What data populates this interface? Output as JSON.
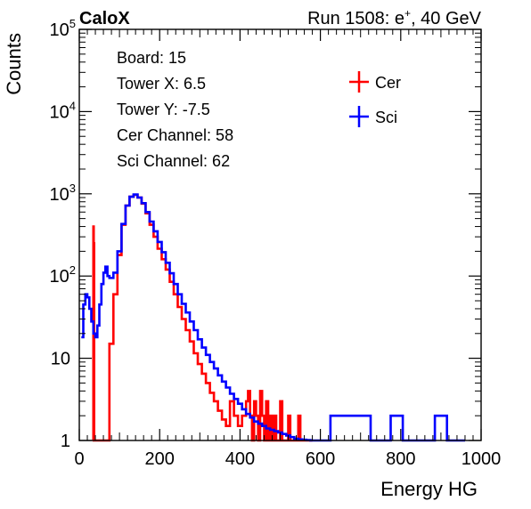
{
  "header": {
    "left": "CaloX",
    "right_prefix": "Run 1508: e",
    "right_sup": "+",
    "right_suffix": ", 40 GeV"
  },
  "info": [
    "Board: 15",
    "Tower X: 6.5",
    "Tower Y: -7.5",
    "Cer Channel: 58",
    "Sci Channel: 62"
  ],
  "chart_data": {
    "type": "line",
    "xlabel": "Energy HG",
    "ylabel": "Counts",
    "xlim": [
      0,
      1000
    ],
    "ylim": [
      1,
      100000
    ],
    "yscale": "log",
    "grid": false,
    "legend_position": "top-right",
    "x_ticks": [
      "0",
      "200",
      "400",
      "600",
      "800",
      "1000"
    ],
    "y_ticks": [
      {
        "base": "1",
        "exp": ""
      },
      {
        "base": "10",
        "exp": ""
      },
      {
        "base": "10",
        "exp": "2"
      },
      {
        "base": "10",
        "exp": "3"
      },
      {
        "base": "10",
        "exp": "4"
      },
      {
        "base": "10",
        "exp": "5"
      }
    ],
    "series": [
      {
        "name": "Cer",
        "color": "#ff0000",
        "x": [
          33,
          34,
          35,
          36,
          37,
          38,
          40,
          55,
          65,
          75,
          85,
          95,
          105,
          115,
          125,
          135,
          145,
          155,
          165,
          175,
          185,
          195,
          205,
          215,
          225,
          235,
          245,
          255,
          265,
          275,
          285,
          295,
          305,
          315,
          325,
          335,
          345,
          355,
          365,
          375,
          385,
          395,
          405,
          415,
          420,
          425,
          430,
          435,
          440,
          445,
          450,
          455,
          460,
          465,
          470,
          475,
          480,
          485,
          490,
          495,
          500,
          505,
          510,
          515,
          520,
          525,
          530,
          535,
          540,
          545,
          550,
          560,
          570,
          575
        ],
        "y": [
          1,
          1,
          400,
          250,
          1,
          1,
          1,
          1,
          1,
          15,
          60,
          180,
          420,
          720,
          920,
          970,
          900,
          760,
          580,
          420,
          300,
          215,
          160,
          120,
          85,
          60,
          42,
          30,
          22,
          16,
          11.5,
          8.5,
          6.5,
          5,
          3.8,
          3,
          2.3,
          1.8,
          1.5,
          3,
          2,
          1.5,
          2,
          3,
          4,
          2,
          1,
          3,
          2,
          1,
          4,
          2,
          1,
          3,
          1,
          2,
          1,
          2,
          1,
          1,
          3,
          1,
          1,
          1,
          2,
          1,
          1,
          1,
          1,
          2,
          1,
          1,
          1,
          1
        ]
      },
      {
        "name": "Sci",
        "color": "#0000ff",
        "x": [
          5,
          10,
          15,
          20,
          25,
          30,
          35,
          40,
          45,
          50,
          55,
          60,
          65,
          70,
          75,
          85,
          95,
          105,
          115,
          125,
          135,
          145,
          155,
          165,
          175,
          185,
          195,
          205,
          215,
          225,
          235,
          245,
          255,
          265,
          275,
          285,
          295,
          305,
          315,
          325,
          335,
          345,
          355,
          365,
          375,
          385,
          395,
          405,
          415,
          425,
          435,
          445,
          455,
          465,
          475,
          485,
          495,
          505,
          515,
          525,
          535,
          545,
          555,
          565,
          575,
          585,
          595,
          605,
          625,
          645,
          665,
          695,
          725,
          775,
          785,
          805,
          885,
          915,
          955
        ],
        "y": [
          18,
          45,
          60,
          55,
          40,
          28,
          20,
          18,
          25,
          45,
          80,
          110,
          130,
          100,
          95,
          110,
          200,
          430,
          720,
          920,
          980,
          900,
          770,
          600,
          460,
          350,
          260,
          195,
          145,
          108,
          80,
          60,
          46,
          36,
          28,
          22,
          17,
          13.5,
          11,
          9,
          7.5,
          6.2,
          5.2,
          4.4,
          3.7,
          3.2,
          2.8,
          2.4,
          2.1,
          1.9,
          1.7,
          1.6,
          1.5,
          1.4,
          1.35,
          1.3,
          1.25,
          1.2,
          1.15,
          1.1,
          1.05,
          1.03,
          1.02,
          1.01,
          1.0,
          1.0,
          1.0,
          1.0,
          2,
          2,
          2,
          2,
          1,
          2,
          2,
          1,
          2,
          1,
          1
        ]
      }
    ]
  }
}
